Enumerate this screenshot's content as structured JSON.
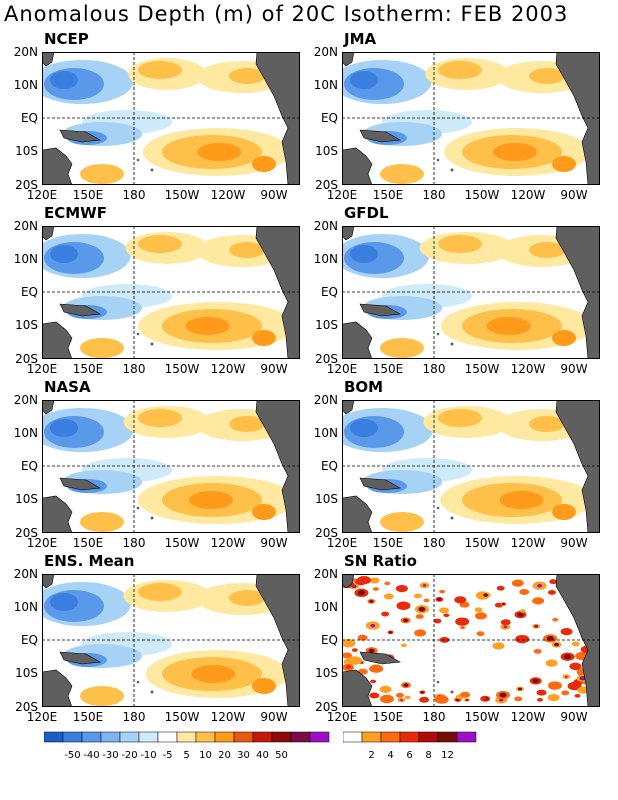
{
  "title": "Anomalous Depth (m) of 20C Isotherm: FEB 2003",
  "y_ticks": [
    "20N",
    "10N",
    "EQ",
    "10S",
    "20S"
  ],
  "x_ticks": [
    "120E",
    "150E",
    "180",
    "150W",
    "120W",
    "90W"
  ],
  "panels": [
    {
      "name": "NCEP"
    },
    {
      "name": "JMA"
    },
    {
      "name": "ECMWF"
    },
    {
      "name": "GFDL"
    },
    {
      "name": "NASA"
    },
    {
      "name": "BOM"
    },
    {
      "name": "ENS. Mean"
    },
    {
      "name": "SN Ratio"
    }
  ],
  "legend_anomaly": {
    "colors": [
      "#1a5fc8",
      "#3a7fe0",
      "#5a98ea",
      "#7db4f0",
      "#a6d2f5",
      "#cfeaf8",
      "#ffffff",
      "#ffe9a0",
      "#ffc04a",
      "#ff9a1a",
      "#e85810",
      "#c41a0a",
      "#8e0a0a",
      "#7a0a4a",
      "#9c10c8"
    ],
    "labels": [
      "-50",
      "-40",
      "-30",
      "-20",
      "-10",
      "-5",
      "5",
      "10",
      "20",
      "30",
      "40",
      "50"
    ]
  },
  "legend_sn": {
    "colors": [
      "#ffffff",
      "#ffa020",
      "#ff6a10",
      "#e82a0a",
      "#b00a0a",
      "#780a0a",
      "#9c10c8"
    ],
    "labels": [
      "2",
      "4",
      "6",
      "8",
      "12"
    ]
  },
  "chart_data": {
    "type": "heatmap",
    "title": "Anomalous Depth (m) of 20C Isotherm: FEB 2003",
    "variable": "20C isotherm depth anomaly",
    "units": "m",
    "x_range": [
      "120E",
      "80W"
    ],
    "y_range": [
      "20S",
      "20N"
    ],
    "panels": [
      "NCEP",
      "JMA",
      "ECMWF",
      "GFDL",
      "NASA",
      "BOM",
      "ENS. Mean",
      "SN Ratio"
    ],
    "contour_levels_anomaly": [
      -50,
      -40,
      -30,
      -20,
      -10,
      -5,
      5,
      10,
      20,
      30,
      40,
      50
    ],
    "contour_levels_sn": [
      2,
      4,
      6,
      8,
      12
    ],
    "pattern_description": "Negative anomalies (blue) in western tropical Pacific north and along equator west of 180; positive anomalies (orange/red) in central/eastern South Pacific near 10S 150W-100W and north Pacific 10N-20N"
  }
}
